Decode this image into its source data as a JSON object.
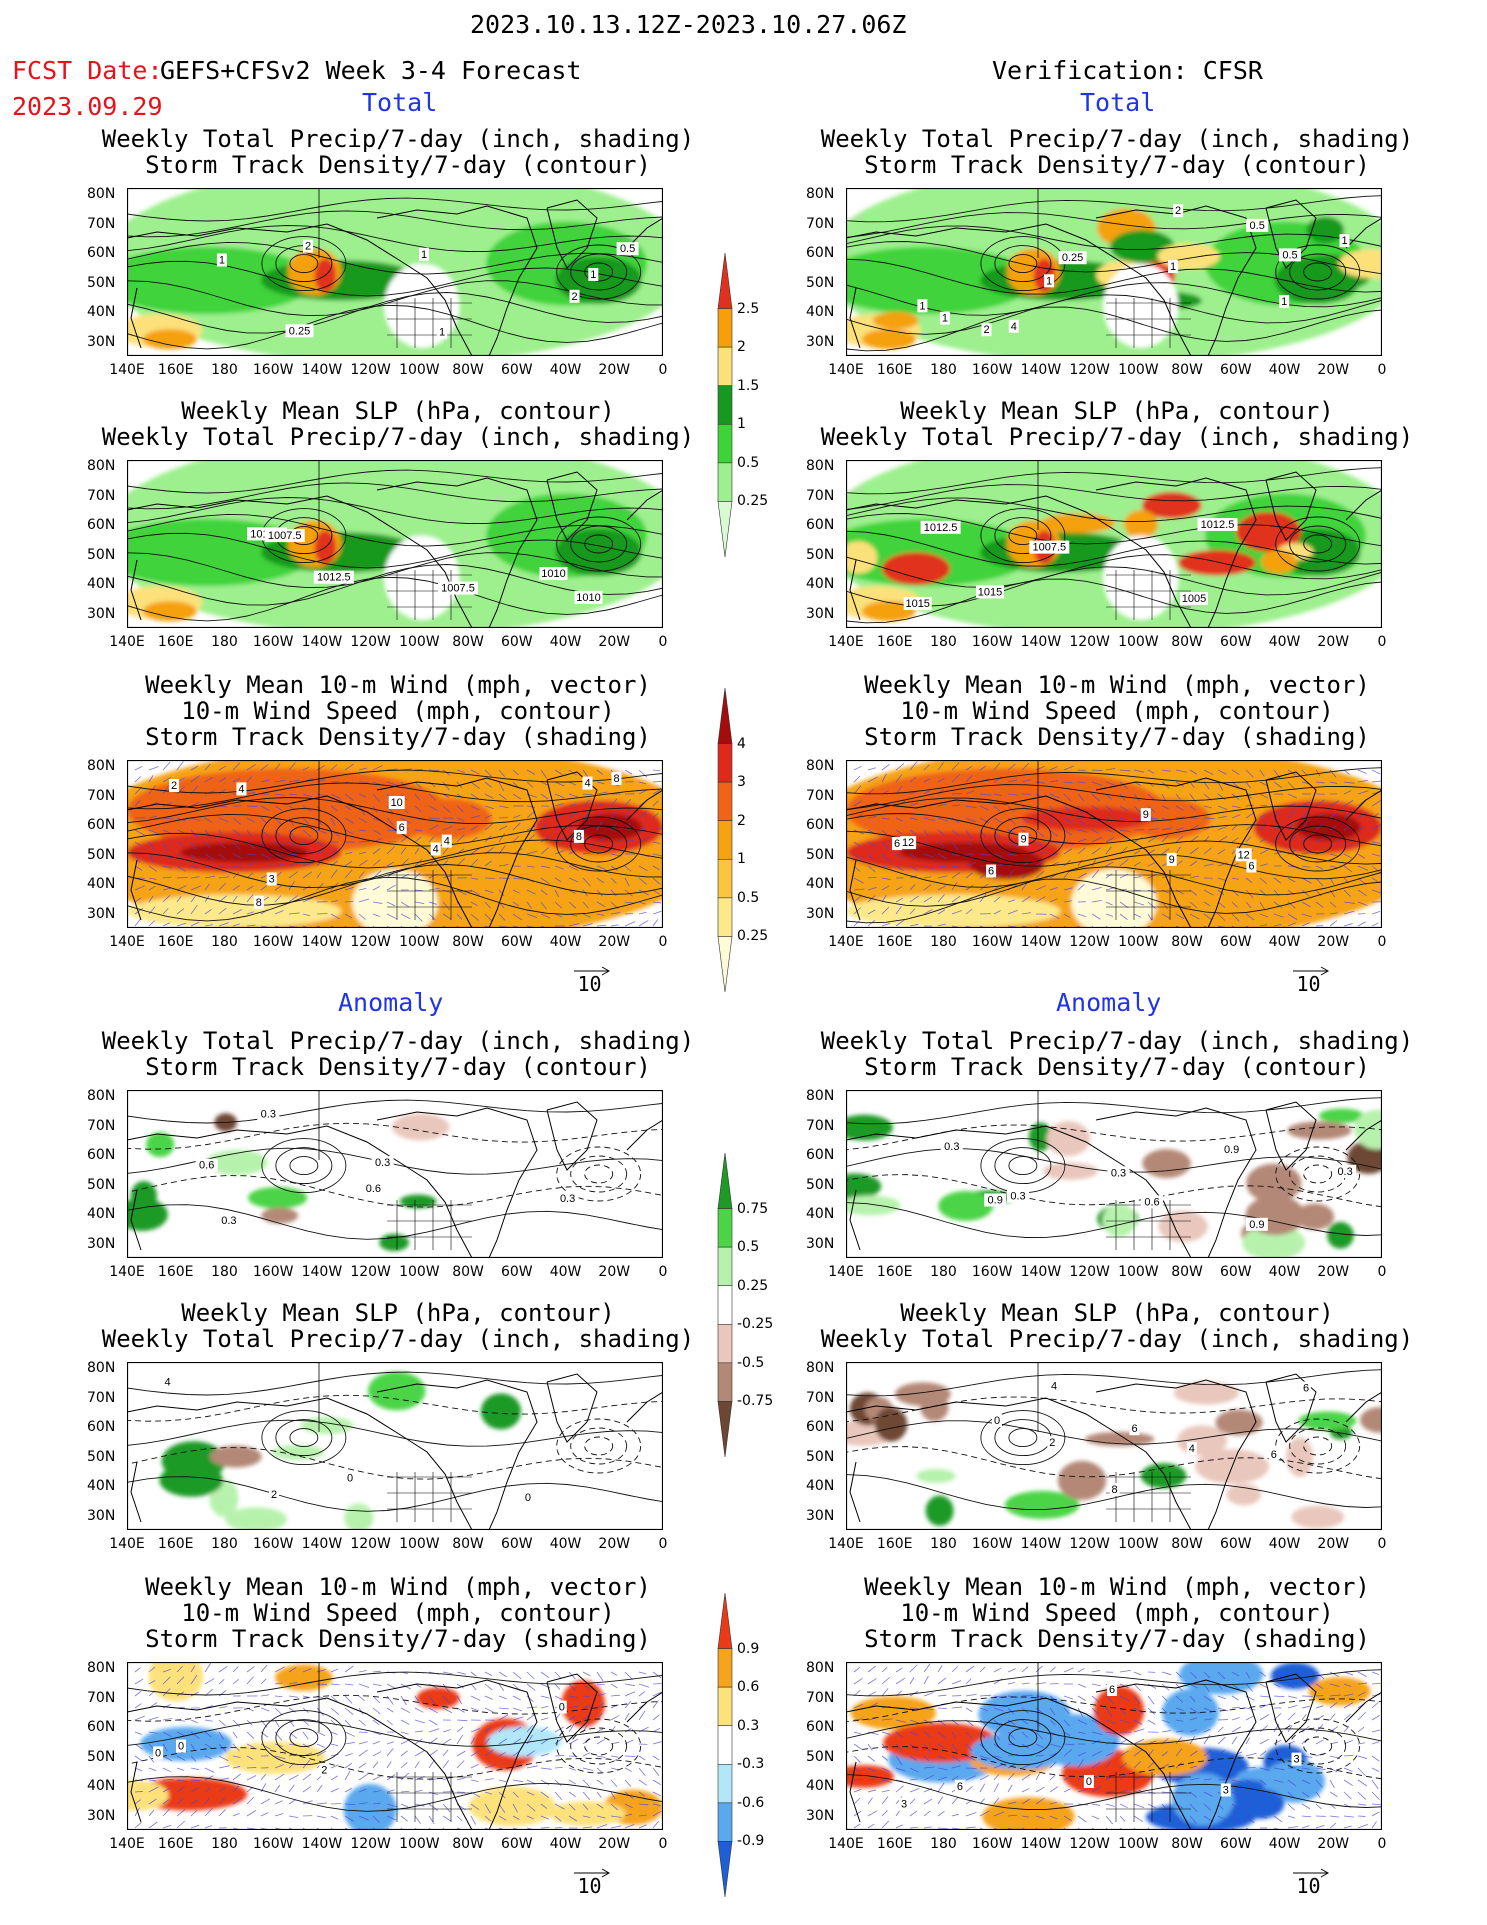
{
  "header": {
    "period": "2023.10.13.12Z-2023.10.27.06Z",
    "fcst_date_label": "FCST Date:",
    "fcst_date": "2023.09.29",
    "forecast_title": "GEFS+CFSv2 Week 3-4 Forecast",
    "verification_title": "Verification: CFSR"
  },
  "sections": {
    "total": "Total",
    "anomaly": "Anomaly"
  },
  "titles": {
    "precip_storm": [
      "Weekly Total Precip/7-day (inch, shading)",
      "Storm Track Density/7-day (contour)"
    ],
    "slp_precip": [
      "Weekly Mean SLP (hPa, contour)",
      "Weekly Total Precip/7-day (inch, shading)"
    ],
    "wind_storm": [
      "Weekly Mean 10-m Wind (mph, vector)",
      "10-m Wind Speed (mph, contour)",
      "Storm Track Density/7-day (shading)"
    ]
  },
  "axes": {
    "lat": [
      "80N",
      "70N",
      "60N",
      "50N",
      "40N",
      "30N"
    ],
    "lon": [
      "140E",
      "160E",
      "180",
      "160W",
      "140W",
      "120W",
      "100W",
      "80W",
      "60W",
      "40W",
      "20W",
      "0"
    ]
  },
  "vector_ref": "10",
  "colorbars": {
    "precip_total": {
      "labels": [
        "2.5",
        "2",
        "1.5",
        "1",
        "0.5",
        "0.25"
      ],
      "colors": [
        "#e0301e",
        "#f5a00a",
        "#fce17a",
        "#17991f",
        "#3fd33a",
        "#9ef08e",
        "#d9fbd2"
      ]
    },
    "storm_total": {
      "labels": [
        "4",
        "3",
        "2",
        "1",
        "0.5",
        "0.25"
      ],
      "colors": [
        "#a50d0d",
        "#dd2a1a",
        "#ef6419",
        "#f6a313",
        "#fcc540",
        "#fde98a",
        "#fefbd6"
      ]
    },
    "precip_anom": {
      "labels": [
        "0.75",
        "0.5",
        "0.25",
        "-0.25",
        "-0.5",
        "-0.75"
      ],
      "colors": [
        "#1e9a25",
        "#4cd446",
        "#b7f2ad",
        "#ffffff",
        "#e9c7bc",
        "#b48877",
        "#6e4634"
      ]
    },
    "storm_anom": {
      "labels": [
        "0.9",
        "0.6",
        "0.3",
        "-0.3",
        "-0.6",
        "-0.9"
      ],
      "colors": [
        "#ea3a18",
        "#f6a31e",
        "#fde27c",
        "#ffffff",
        "#b2e7fa",
        "#5aa8ee",
        "#1c5fd6"
      ]
    }
  },
  "panels": {
    "r1l": {
      "contour_labels": [
        "1",
        "1",
        "2",
        "0.5",
        "1",
        "0.25",
        "2",
        "1"
      ]
    },
    "r1r": {
      "contour_labels": [
        "1",
        "0.5",
        "0.25",
        "0.5",
        "2",
        "1",
        "1",
        "1",
        "2",
        "1",
        "4",
        "1"
      ]
    },
    "r2l": {
      "contour_labels": [
        "1012.5",
        "1010",
        "1007.5",
        "1010",
        "1007.5",
        "1012.5"
      ]
    },
    "r2r": {
      "contour_labels": [
        "1015",
        "1012.5",
        "1007.5",
        "1015",
        "1005",
        "1012.5"
      ]
    },
    "r3l": {
      "contour_labels": [
        "2",
        "4",
        "6",
        "8",
        "4",
        "4",
        "8",
        "10",
        "8",
        "4",
        "3"
      ]
    },
    "r3r": {
      "contour_labels": [
        "6",
        "6",
        "9",
        "12",
        "9",
        "6",
        "12",
        "9"
      ]
    },
    "r4l": {
      "contour_labels": [
        "0.3",
        "0.3",
        "0.6",
        "0.6",
        "0.3",
        "0.3"
      ]
    },
    "r4r": {
      "contour_labels": [
        "0.3",
        "0.9",
        "0.9",
        "0.3",
        "0.3",
        "0.3",
        "0.9",
        "0.6"
      ]
    },
    "r5l": {
      "contour_labels": [
        "2",
        "0",
        "0",
        "4"
      ]
    },
    "r5r": {
      "contour_labels": [
        "0",
        "4",
        "8",
        "6",
        "6",
        "2",
        "6",
        "4"
      ]
    },
    "r6l": {
      "contour_labels": [
        "0",
        "0",
        "2",
        "0"
      ]
    },
    "r6r": {
      "contour_labels": [
        "3",
        "3",
        "0",
        "3",
        "6",
        "6"
      ]
    }
  }
}
